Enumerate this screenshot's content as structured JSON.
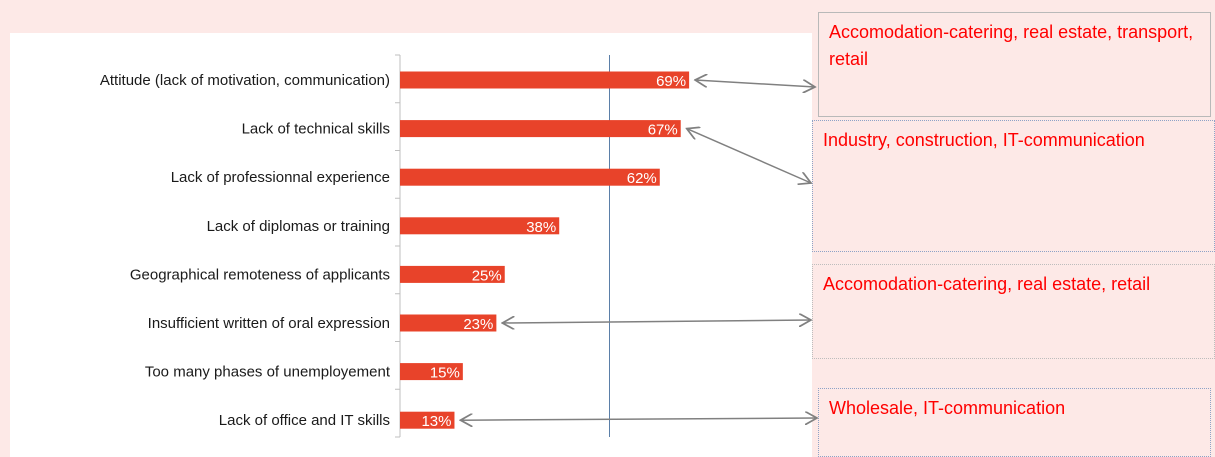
{
  "chart_data": {
    "type": "bar",
    "orientation": "horizontal",
    "categories": [
      "Attitude (lack of motivation, communication)",
      "Lack of technical skills",
      "Lack of professionnal experience",
      "Lack of diplomas or training",
      "Geographical remoteness of applicants",
      "Insufficient written of oral expression",
      "Too many phases of unemployement",
      "Lack of office and IT skills"
    ],
    "values": [
      69,
      67,
      62,
      38,
      25,
      23,
      15,
      13
    ],
    "value_labels": [
      "69%",
      "67%",
      "62%",
      "38%",
      "25%",
      "23%",
      "15%",
      "13%"
    ],
    "unit": "%",
    "xlim": [
      0,
      100
    ],
    "reference_line": 50,
    "bar_color": "#e8432a",
    "grid": false,
    "legend": "none"
  },
  "callouts": [
    {
      "text": "Accomodation-catering, real estate, transport, retail",
      "targets": [
        0
      ]
    },
    {
      "text": "Industry, construction, IT-communication",
      "targets": [
        1
      ]
    },
    {
      "text": "Accomodation-catering, real estate, retail",
      "targets": [
        5
      ]
    },
    {
      "text": "Wholesale, IT-communication",
      "targets": [
        7
      ]
    }
  ],
  "colors": {
    "background": "#fde9e7",
    "callout_text": "#ff0000",
    "arrow": "#808080",
    "reference_line": "#5b7fa8"
  }
}
